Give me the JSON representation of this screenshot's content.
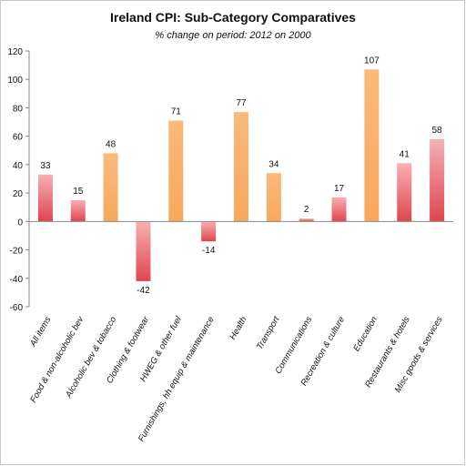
{
  "chart_data": {
    "type": "bar",
    "title": "Ireland CPI: Sub-Category Comparatives",
    "subtitle": "% change on period: 2012 on 2000",
    "xlabel": "",
    "ylabel": "",
    "ylim": [
      -60,
      120
    ],
    "yticks": [
      "120",
      "100",
      "80",
      "60",
      "40",
      "20",
      "0",
      "-20",
      "-40",
      "-60"
    ],
    "grid": false,
    "legend": "none",
    "categories": [
      "All items",
      "Food & non-alcoholic bev",
      "Alcoholic bev & tobacco",
      "Clothing & footwear",
      "HWEG & other fuel",
      "Furnishings, hh equip & maintenance",
      "Health",
      "Transport",
      "Communications",
      "Recreation & culture",
      "Education",
      "Restaurants & hotels",
      "Misc goods & services"
    ],
    "values": [
      33,
      15,
      48,
      -42,
      71,
      -14,
      77,
      34,
      2,
      17,
      107,
      41,
      58
    ],
    "value_labels": [
      "33",
      "15",
      "48",
      "-42",
      "71",
      "-14",
      "77",
      "34",
      "2",
      "17",
      "107",
      "41",
      "58"
    ],
    "bar_colors": [
      "red",
      "red",
      "orange",
      "red",
      "orange",
      "red",
      "orange",
      "orange",
      "red",
      "red",
      "orange",
      "red",
      "red"
    ],
    "colors": {
      "red_light": "#f7b0b4",
      "red_dark": "#e0454d",
      "orange_light": "#fbb97a",
      "orange_dark": "#f8a85c",
      "axis": "#888888",
      "text": "#111111"
    }
  }
}
